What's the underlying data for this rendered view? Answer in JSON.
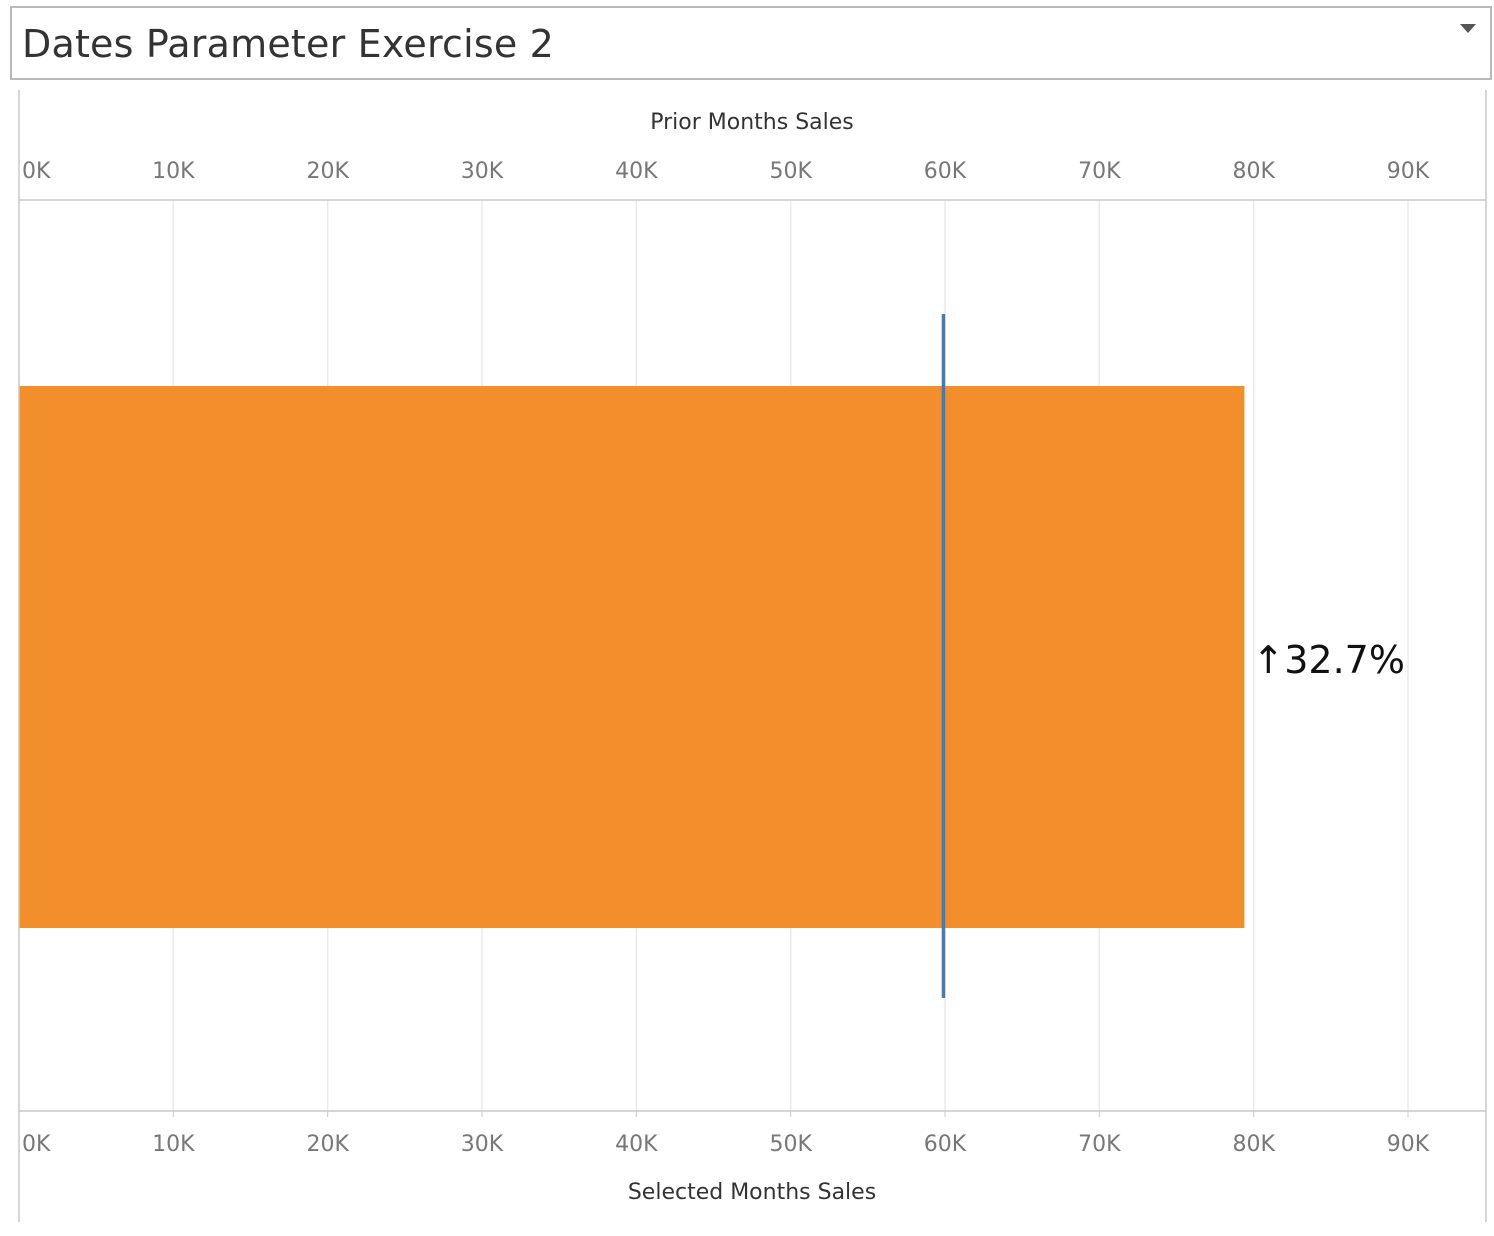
{
  "header": {
    "title": "Dates Parameter Exercise 2"
  },
  "chart_data": {
    "type": "bar",
    "orientation": "horizontal",
    "top_axis_label": "Prior Months Sales",
    "bottom_axis_label": "Selected Months Sales",
    "tick_values": [
      0,
      10000,
      20000,
      30000,
      40000,
      50000,
      60000,
      70000,
      80000,
      90000
    ],
    "tick_labels": [
      "0K",
      "10K",
      "20K",
      "30K",
      "40K",
      "50K",
      "60K",
      "70K",
      "80K",
      "90K"
    ],
    "xlim": [
      0,
      95000
    ],
    "selected_months_sales": 79400,
    "prior_months_sales": 59900,
    "change_label": "↑32.7%",
    "colors": {
      "bar": "#f28e2c",
      "reference_line": "#4e79a7",
      "grid": "#ebebeb",
      "axis": "#c8c8c8"
    }
  }
}
